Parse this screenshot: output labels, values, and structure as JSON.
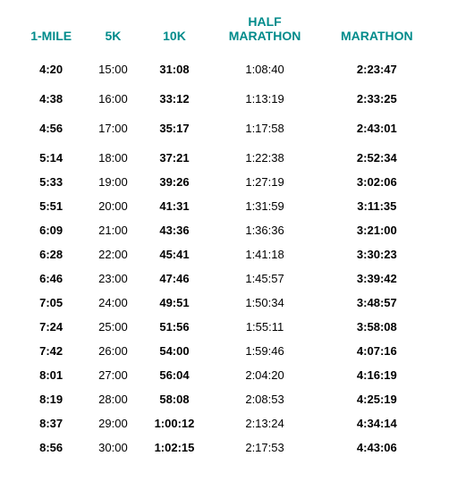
{
  "headers": {
    "c0": "1-MILE",
    "c1": "5K",
    "c2": "10K",
    "c3_line1": "HALF",
    "c3_line2": "MARATHON",
    "c4": "MARATHON"
  },
  "header_color": "#008b8b",
  "bold_columns": [
    0,
    2,
    4
  ],
  "gap_before_rows": [
    0,
    1,
    2,
    3
  ],
  "rows": [
    [
      "4:20",
      "15:00",
      "31:08",
      "1:08:40",
      "2:23:47"
    ],
    [
      "4:38",
      "16:00",
      "33:12",
      "1:13:19",
      "2:33:25"
    ],
    [
      "4:56",
      "17:00",
      "35:17",
      "1:17:58",
      "2:43:01"
    ],
    [
      "5:14",
      "18:00",
      "37:21",
      "1:22:38",
      "2:52:34"
    ],
    [
      "5:33",
      "19:00",
      "39:26",
      "1:27:19",
      "3:02:06"
    ],
    [
      "5:51",
      "20:00",
      "41:31",
      "1:31:59",
      "3:11:35"
    ],
    [
      "6:09",
      "21:00",
      "43:36",
      "1:36:36",
      "3:21:00"
    ],
    [
      "6:28",
      "22:00",
      "45:41",
      "1:41:18",
      "3:30:23"
    ],
    [
      "6:46",
      "23:00",
      "47:46",
      "1:45:57",
      "3:39:42"
    ],
    [
      "7:05",
      "24:00",
      "49:51",
      "1:50:34",
      "3:48:57"
    ],
    [
      "7:24",
      "25:00",
      "51:56",
      "1:55:11",
      "3:58:08"
    ],
    [
      "7:42",
      "26:00",
      "54:00",
      "1:59:46",
      "4:07:16"
    ],
    [
      "8:01",
      "27:00",
      "56:04",
      "2:04:20",
      "4:16:19"
    ],
    [
      "8:19",
      "28:00",
      "58:08",
      "2:08:53",
      "4:25:19"
    ],
    [
      "8:37",
      "29:00",
      "1:00:12",
      "2:13:24",
      "4:34:14"
    ],
    [
      "8:56",
      "30:00",
      "1:02:15",
      "2:17:53",
      "4:43:06"
    ]
  ]
}
